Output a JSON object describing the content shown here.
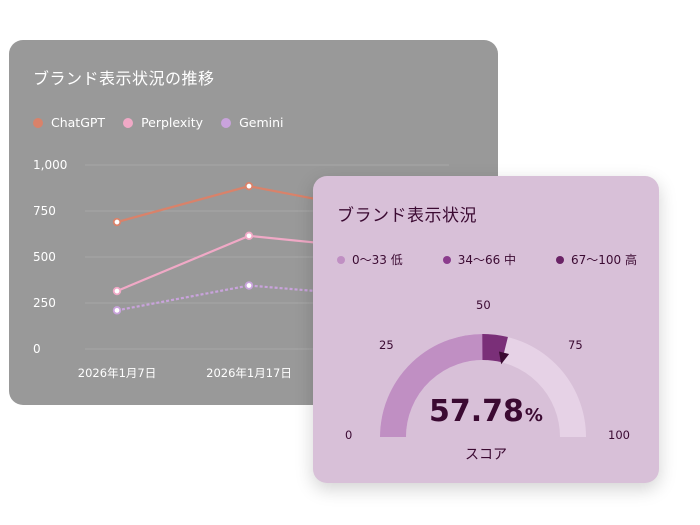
{
  "colors": {
    "chatgpt": "#d9826a",
    "perplexity": "#f0a9c6",
    "gemini": "#c9a3dc",
    "low": "#c08fc3",
    "mid": "#8b3c8d",
    "high": "#6a2366",
    "gauge_track": "#e6d2e6",
    "gauge_fill": "#c08fc3",
    "gauge_needle_seg": "#7a2f78",
    "needle": "#3b0a32"
  },
  "back_card": {
    "title": "ブランド表示状況の推移",
    "legend": [
      {
        "label": "ChatGPT",
        "color": "#d9826a"
      },
      {
        "label": "Perplexity",
        "color": "#f0a9c6"
      },
      {
        "label": "Gemini",
        "color": "#c9a3dc"
      }
    ]
  },
  "front_card": {
    "title": "ブランド表示状況",
    "legend": [
      {
        "label": "0〜33 低",
        "color": "#c08fc3"
      },
      {
        "label": "34〜66 中",
        "color": "#8b3c8d"
      },
      {
        "label": "67〜100 高",
        "color": "#6a2366"
      }
    ],
    "gauge_ticks": [
      "0",
      "25",
      "50",
      "75",
      "100"
    ],
    "score_number": "57.78",
    "score_unit": "%",
    "score_label": "スコア"
  },
  "chart_data": [
    {
      "type": "line",
      "title": "ブランド表示状況の推移",
      "categories": [
        "2026年1月7日",
        "2026年1月17日",
        ""
      ],
      "series": [
        {
          "name": "ChatGPT",
          "values": [
            690,
            885,
            780
          ]
        },
        {
          "name": "Perplexity",
          "values": [
            315,
            615,
            560
          ]
        },
        {
          "name": "Gemini",
          "values": [
            210,
            345,
            300
          ]
        }
      ],
      "y_ticks": [
        "0",
        "250",
        "500",
        "750",
        "1,000"
      ],
      "ylim": [
        0,
        1000
      ],
      "grid": true,
      "legend": "top-left"
    },
    {
      "type": "gauge",
      "title": "ブランド表示状況",
      "value": 57.78,
      "range": [
        0,
        100
      ],
      "ticks": [
        0,
        25,
        50,
        75,
        100
      ]
    }
  ]
}
